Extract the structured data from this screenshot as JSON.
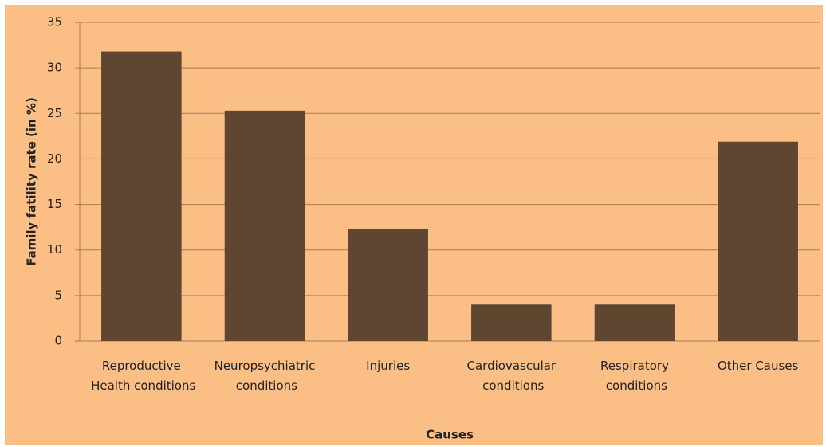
{
  "chart_data": {
    "type": "bar",
    "categories": [
      "Reproductive Health conditions",
      "Neuropsychiatric conditions",
      "Injuries",
      "Cardiovascular conditions",
      "Respiratory conditions",
      "Other Causes"
    ],
    "values": [
      31.8,
      25.3,
      12.3,
      4,
      4,
      21.9
    ],
    "color": "#5e4631",
    "xlabel": "Causes",
    "ylabel": "Family fatility rate (in %)",
    "ylim": [
      0,
      35
    ],
    "yticks": [
      0,
      5,
      10,
      15,
      20,
      25,
      30,
      35
    ],
    "grid": true
  }
}
